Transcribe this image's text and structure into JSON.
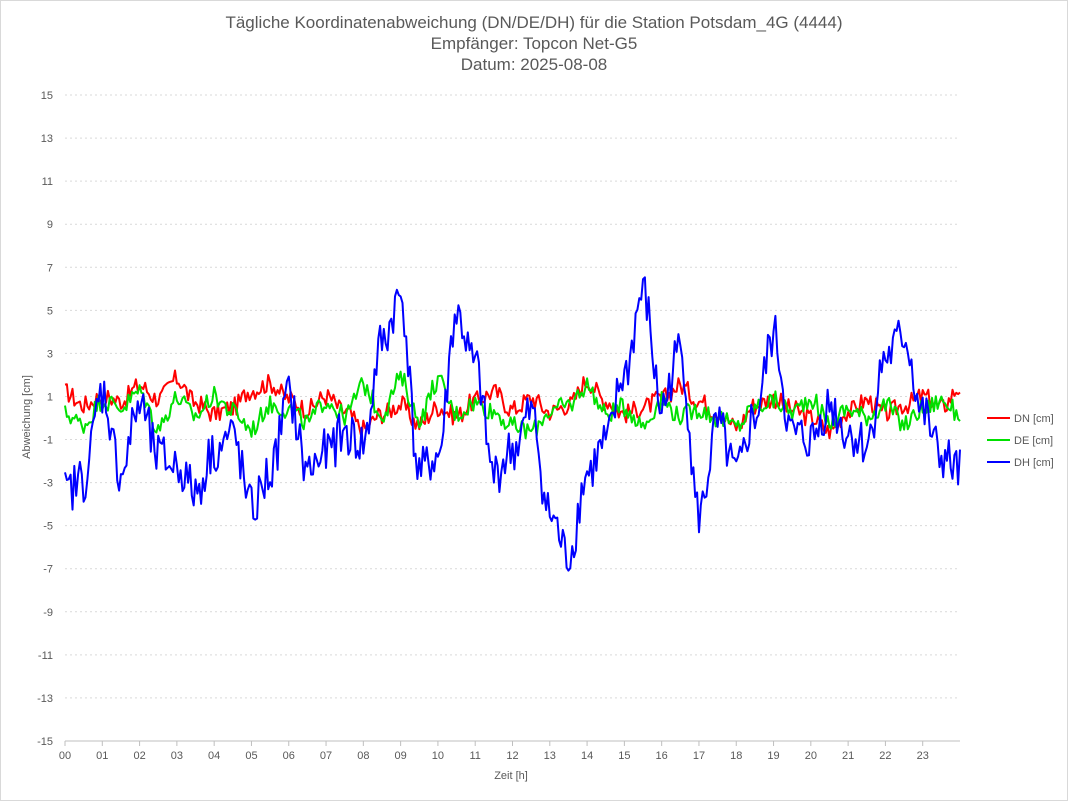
{
  "chart_data": {
    "type": "line",
    "title_lines": [
      "Tägliche Koordinatenabweichung (DN/DE/DH) für die Station Potsdam_4G (4444)",
      "Empfänger: Topcon Net-G5",
      "Datum: 2025-08-08"
    ],
    "xlabel": "Zeit [h]",
    "ylabel": "Abweichung [cm]",
    "xlim": [
      0,
      24
    ],
    "ylim": [
      -15,
      15
    ],
    "x_tick_labels": [
      "00",
      "01",
      "02",
      "03",
      "04",
      "05",
      "06",
      "07",
      "08",
      "09",
      "10",
      "11",
      "12",
      "13",
      "14",
      "15",
      "16",
      "17",
      "18",
      "19",
      "20",
      "21",
      "22",
      "23"
    ],
    "y_ticks": [
      15,
      13,
      11,
      9,
      7,
      5,
      3,
      1,
      -1,
      -3,
      -5,
      -7,
      -9,
      -11,
      -13,
      -15
    ],
    "y_tick_labels": [
      "15",
      "13",
      "11",
      "9",
      "7",
      "5",
      "3",
      "1",
      "-1",
      "-3",
      "-5",
      "-7",
      "-9",
      "-11",
      "-13",
      "-15"
    ],
    "grid": true,
    "legend_position": "right",
    "x_step_hours": 0.5,
    "series": [
      {
        "name": "DN [cm]",
        "color": "#ff0000",
        "values": [
          1.2,
          0.6,
          1.0,
          0.8,
          1.5,
          0.9,
          1.8,
          0.7,
          0.2,
          0.5,
          1.3,
          1.6,
          0.9,
          0.4,
          1.0,
          0.3,
          -0.5,
          0.2,
          0.6,
          -0.3,
          0.5,
          0.1,
          0.8,
          1.2,
          0.4,
          0.9,
          0.3,
          0.6,
          1.7,
          0.8,
          0.2,
          0.5,
          0.9,
          1.5,
          0.8,
          0.3,
          -0.4,
          0.6,
          0.9,
          0.4,
          0.0,
          -0.6,
          0.3,
          0.8,
          0.2,
          0.6,
          1.0,
          0.5,
          1.4,
          0.6
        ]
      },
      {
        "name": "DE [cm]",
        "color": "#00e000",
        "values": [
          0.2,
          -0.3,
          0.8,
          0.5,
          1.2,
          -0.4,
          0.9,
          0.1,
          1.0,
          0.3,
          -0.5,
          0.6,
          0.4,
          -0.2,
          0.8,
          0.1,
          1.5,
          0.2,
          1.8,
          0.0,
          1.7,
          0.2,
          0.7,
          0.3,
          -0.4,
          -0.6,
          0.3,
          0.6,
          1.5,
          0.2,
          0.5,
          -0.3,
          0.8,
          0.1,
          0.4,
          0.0,
          -0.4,
          0.5,
          0.8,
          0.3,
          0.9,
          -0.2,
          0.4,
          0.1,
          0.6,
          -0.3,
          0.4,
          0.8,
          0.2,
          0.1
        ]
      },
      {
        "name": "DH [cm]",
        "color": "#0000ff",
        "values": [
          -3.5,
          -2.8,
          1.2,
          -2.5,
          0.6,
          -1.8,
          -2.2,
          -3.4,
          -1.5,
          -0.8,
          -4.2,
          -2.6,
          1.0,
          -2.4,
          -1.6,
          -0.7,
          -1.2,
          3.5,
          5.6,
          -2.5,
          -1.8,
          4.8,
          2.4,
          -2.6,
          -1.5,
          0.2,
          -4.5,
          -6.4,
          -2.6,
          -1.2,
          2.0,
          5.8,
          0.5,
          3.2,
          -4.5,
          -0.4,
          -2.6,
          0.1,
          3.8,
          -0.8,
          -1.0,
          0.6,
          -0.7,
          -1.2,
          2.8,
          3.8,
          0.2,
          -1.8,
          -2.5,
          -3.1
        ]
      }
    ]
  }
}
